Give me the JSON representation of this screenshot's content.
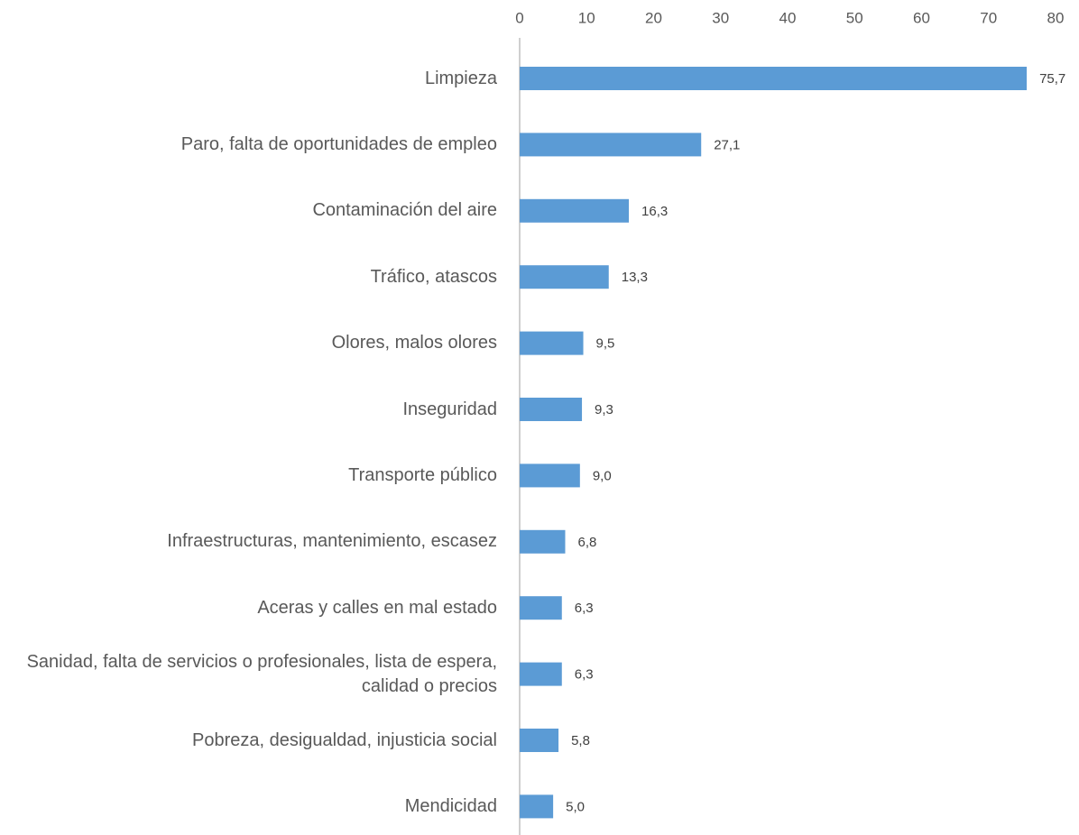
{
  "chart_data": {
    "type": "bar",
    "orientation": "horizontal",
    "categories": [
      "Limpieza",
      "Paro, falta de oportunidades de empleo",
      "Contaminación del aire",
      "Tráfico, atascos",
      "Olores, malos olores",
      "Inseguridad",
      "Transporte público",
      "Infraestructuras, mantenimiento, escasez",
      "Aceras y calles en mal estado",
      "Sanidad, falta de servicios o profesionales, lista de espera, calidad o precios",
      "Pobreza, desigualdad, injusticia social",
      "Mendicidad"
    ],
    "values": [
      75.7,
      27.1,
      16.3,
      13.3,
      9.5,
      9.3,
      9.0,
      6.8,
      6.3,
      6.3,
      5.8,
      5.0
    ],
    "value_labels": [
      "75,7",
      "27,1",
      "16,3",
      "13,3",
      "9,5",
      "9,3",
      "9,0",
      "6,8",
      "6,3",
      "6,3",
      "5,8",
      "5,0"
    ],
    "color": "#5b9bd5",
    "xlim": [
      0,
      80
    ],
    "xticks": [
      0,
      10,
      20,
      30,
      40,
      50,
      60,
      70,
      80
    ]
  }
}
